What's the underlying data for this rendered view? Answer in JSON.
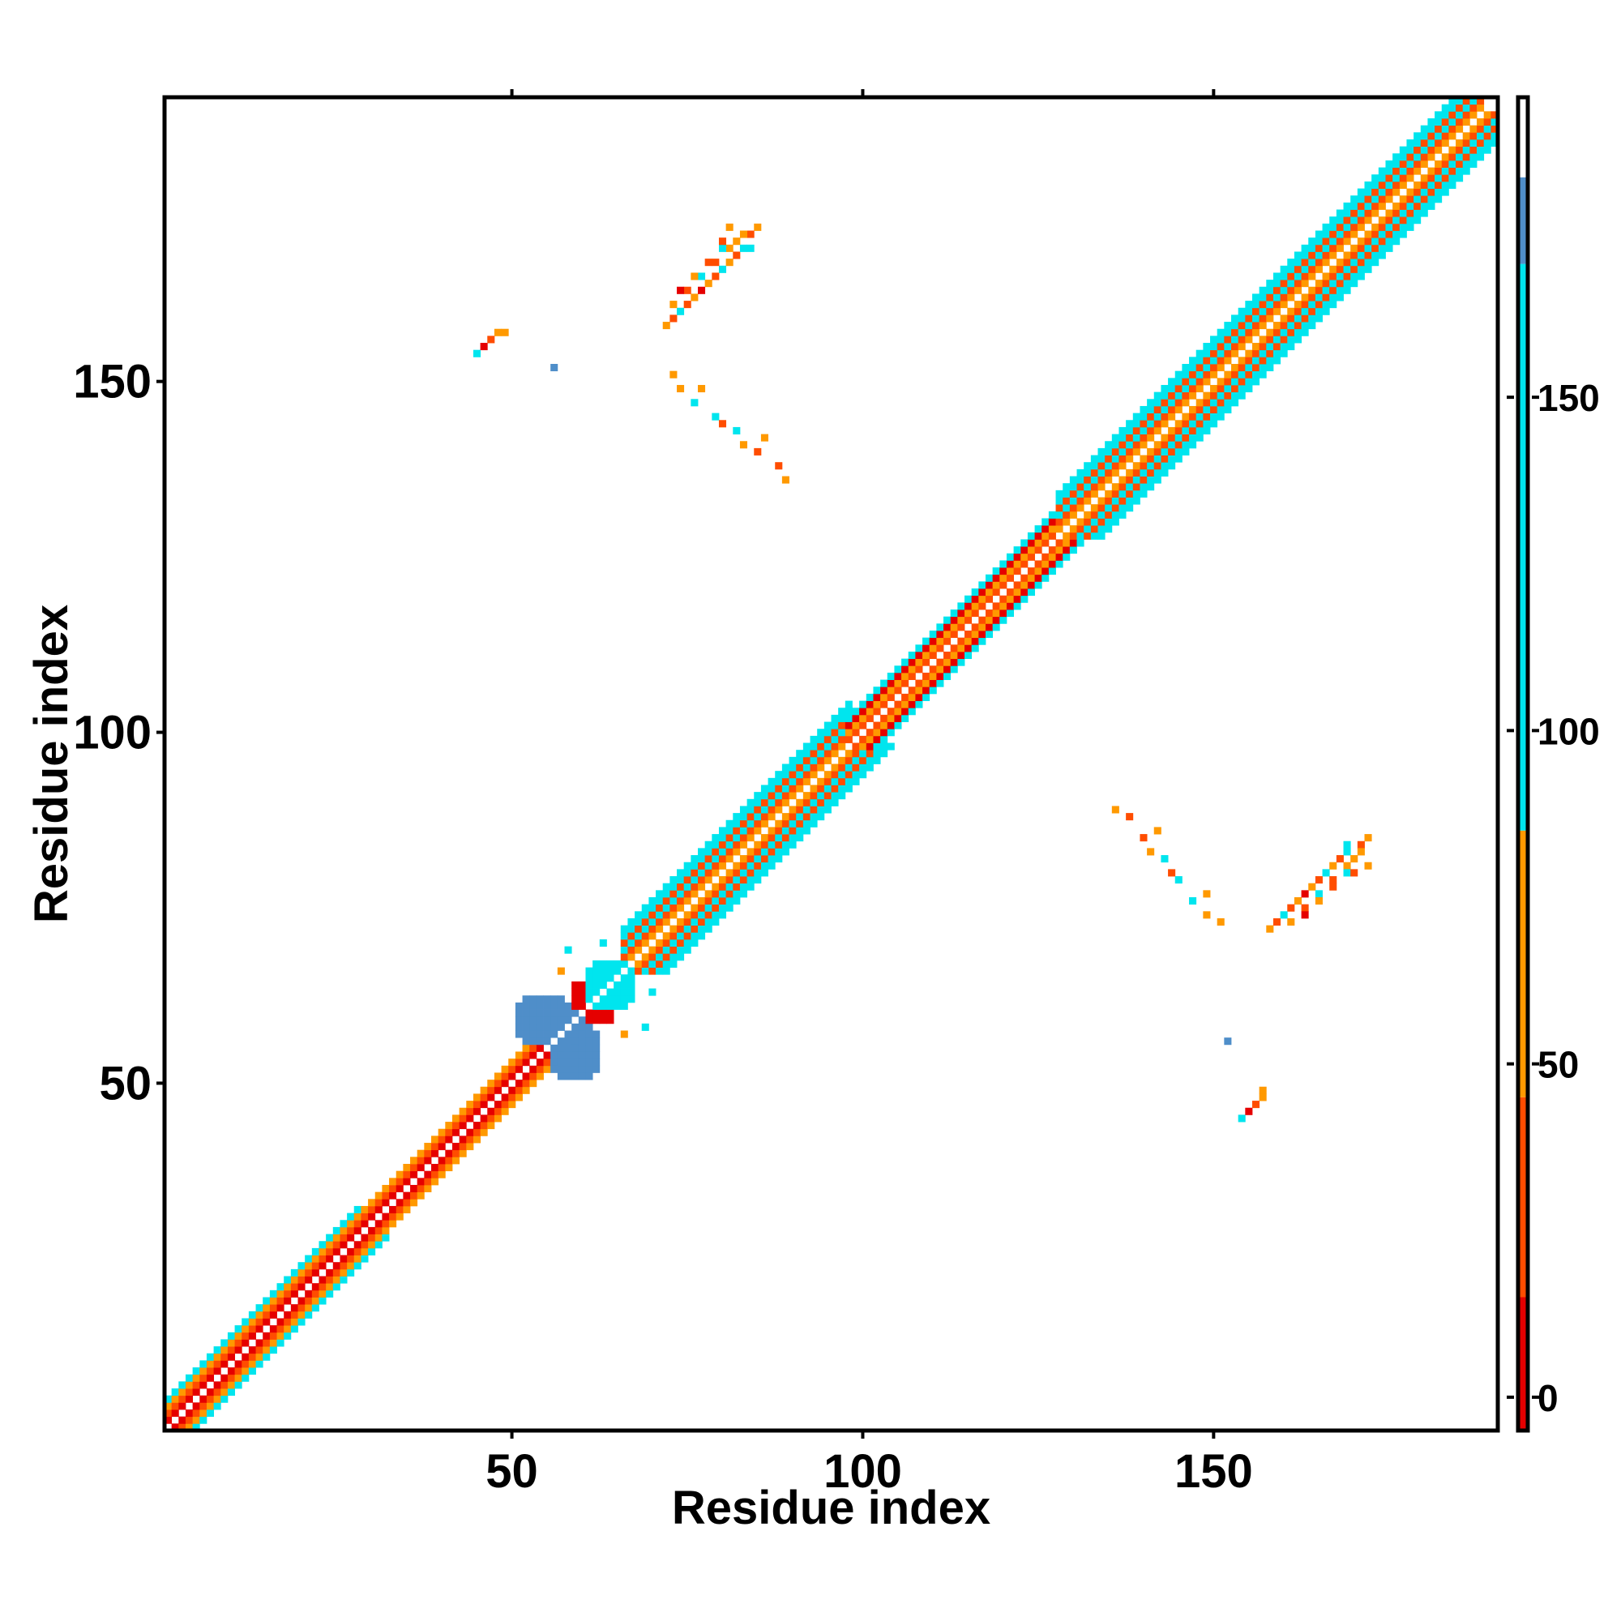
{
  "chart_data": {
    "type": "heatmap",
    "xlabel": "Residue index",
    "ylabel": "Residue index",
    "xlim": [
      1,
      190
    ],
    "ylim": [
      1,
      190
    ],
    "x_ticks": [
      50,
      100,
      150
    ],
    "y_ticks": [
      50,
      100,
      150
    ],
    "colorbar": {
      "ticks": [
        0,
        50,
        100,
        150
      ],
      "range": [
        -5,
        195
      ],
      "bands": [
        {
          "from": -5,
          "to": 15,
          "color": "#e50000"
        },
        {
          "from": 15,
          "to": 45,
          "color": "#ff4d00"
        },
        {
          "from": 45,
          "to": 85,
          "color": "#ff9900"
        },
        {
          "from": 85,
          "to": 170,
          "color": "#00e5ee"
        },
        {
          "from": 170,
          "to": 183,
          "color": "#4f8ec9"
        },
        {
          "from": 183,
          "to": 195,
          "color": "#ffffff"
        }
      ]
    },
    "diagonal": {
      "start": 1,
      "end": 190,
      "self_value": 190
    },
    "bands": [
      {
        "from": 1,
        "to": 28,
        "offsets": [
          [
            1,
            10
          ],
          [
            2,
            30
          ],
          [
            3,
            60
          ],
          [
            4,
            95
          ]
        ]
      },
      {
        "from": 28,
        "to": 52,
        "offsets": [
          [
            1,
            10
          ],
          [
            2,
            30
          ],
          [
            3,
            60
          ]
        ]
      },
      {
        "from": 52,
        "to": 60,
        "offsets": [
          [
            1,
            10
          ],
          [
            2,
            30
          ],
          [
            3,
            60
          ]
        ]
      },
      {
        "from": 66,
        "to": 98,
        "offsets": [
          [
            1,
            60
          ],
          [
            2,
            30
          ],
          [
            3,
            100
          ],
          [
            4,
            30
          ],
          [
            5,
            100
          ],
          [
            6,
            120
          ]
        ]
      },
      {
        "from": 98,
        "to": 128,
        "offsets": [
          [
            1,
            30
          ],
          [
            2,
            60
          ],
          [
            3,
            10
          ],
          [
            4,
            95
          ]
        ]
      },
      {
        "from": 128,
        "to": 158,
        "offsets": [
          [
            1,
            60
          ],
          [
            2,
            30
          ],
          [
            3,
            100
          ],
          [
            4,
            30
          ],
          [
            5,
            100
          ],
          [
            6,
            120
          ]
        ]
      },
      {
        "from": 158,
        "to": 188,
        "offsets": [
          [
            1,
            60
          ],
          [
            2,
            30
          ],
          [
            3,
            100
          ],
          [
            4,
            30
          ],
          [
            5,
            100
          ],
          [
            6,
            120
          ]
        ]
      }
    ],
    "symmetric_cells": [
      [
        72,
        158,
        60
      ],
      [
        73,
        159,
        30
      ],
      [
        74,
        160,
        100
      ],
      [
        75,
        161,
        30
      ],
      [
        76,
        162,
        60
      ],
      [
        77,
        163,
        10
      ],
      [
        78,
        164,
        60
      ],
      [
        79,
        165,
        30
      ],
      [
        80,
        166,
        100
      ],
      [
        81,
        167,
        60
      ],
      [
        82,
        168,
        30
      ],
      [
        83,
        169,
        100
      ],
      [
        73,
        161,
        60
      ],
      [
        75,
        163,
        30
      ],
      [
        77,
        165,
        100
      ],
      [
        79,
        167,
        30
      ],
      [
        81,
        169,
        60
      ],
      [
        74,
        163,
        10
      ],
      [
        76,
        165,
        60
      ],
      [
        78,
        167,
        30
      ],
      [
        80,
        169,
        100
      ],
      [
        82,
        170,
        60
      ],
      [
        84,
        171,
        30
      ],
      [
        85,
        172,
        60
      ],
      [
        84,
        169,
        100
      ],
      [
        83,
        171,
        60
      ],
      [
        81,
        172,
        60
      ],
      [
        80,
        170,
        30
      ],
      [
        45,
        154,
        100
      ],
      [
        46,
        155,
        10
      ],
      [
        47,
        156,
        30
      ],
      [
        48,
        157,
        60
      ],
      [
        49,
        157,
        60
      ],
      [
        56,
        152,
        170
      ],
      [
        73,
        151,
        60
      ],
      [
        74,
        149,
        60
      ],
      [
        76,
        147,
        100
      ],
      [
        77,
        149,
        60
      ],
      [
        79,
        145,
        100
      ],
      [
        80,
        144,
        30
      ],
      [
        82,
        143,
        100
      ],
      [
        83,
        141,
        60
      ],
      [
        85,
        140,
        30
      ],
      [
        86,
        142,
        60
      ],
      [
        88,
        138,
        30
      ],
      [
        89,
        136,
        60
      ],
      [
        66,
        57,
        60
      ],
      [
        69,
        58,
        100
      ],
      [
        70,
        63,
        100
      ]
    ],
    "blobs": [
      {
        "x": [
          51,
          56
        ],
        "y": [
          57,
          61
        ],
        "value": 175
      },
      {
        "x": [
          56,
          62
        ],
        "y": [
          52,
          57
        ],
        "value": 175
      },
      {
        "x": [
          57,
          61
        ],
        "y": [
          56,
          61
        ],
        "value": 175
      },
      {
        "x": [
          61,
          64
        ],
        "y": [
          59,
          62
        ],
        "value": 10
      },
      {
        "x": [
          61,
          66
        ],
        "y": [
          62,
          66
        ],
        "value": 100
      },
      {
        "x": [
          63,
          67
        ],
        "y": [
          62,
          66
        ],
        "value": 120
      }
    ]
  }
}
